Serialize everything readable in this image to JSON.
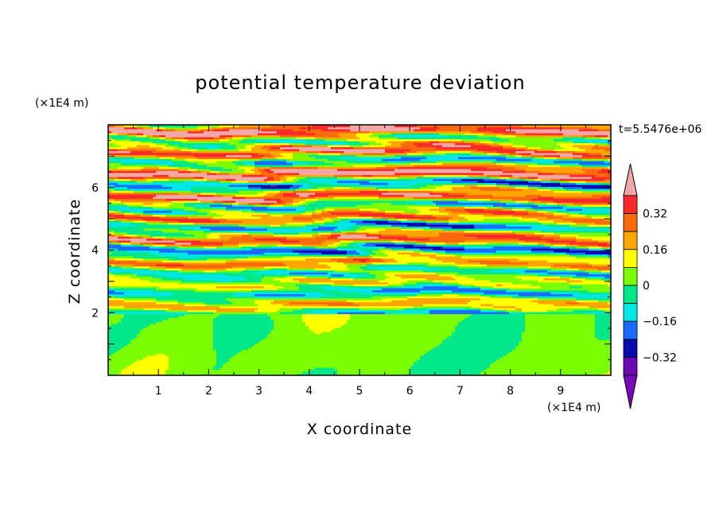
{
  "chart_data": {
    "type": "heatmap",
    "title": "potential temperature deviation",
    "xlabel": "X coordinate",
    "ylabel": "Z coordinate",
    "x_unit": "(×1E4 m)",
    "y_unit": "(×1E4 m)",
    "time_label": "t=5.5476e+06",
    "xlim": [
      0,
      10
    ],
    "ylim": [
      0,
      8
    ],
    "x_ticks": [
      "1",
      "2",
      "3",
      "4",
      "5",
      "6",
      "7",
      "8",
      "9"
    ],
    "y_ticks": [
      "2",
      "4",
      "6"
    ],
    "colorbar": {
      "levels": [
        0.4,
        0.32,
        0.24,
        0.16,
        0.08,
        0.0,
        -0.08,
        -0.16,
        -0.24,
        -0.32,
        -0.4
      ],
      "colors": [
        "#fb2a2a",
        "#fb6a0a",
        "#ffa500",
        "#ffff00",
        "#7cfc00",
        "#00e88a",
        "#00e5e5",
        "#1a6cff",
        "#0a0ab0",
        "#6a0ab0"
      ],
      "upper_color": "#f4a7a7",
      "lower_color": "#7a0ab8",
      "tick_labels": [
        "0.32",
        "0.16",
        "0",
        "−0.16",
        "−0.32"
      ],
      "tick_values": [
        0.32,
        0.16,
        0.0,
        -0.16,
        -0.32
      ]
    }
  }
}
